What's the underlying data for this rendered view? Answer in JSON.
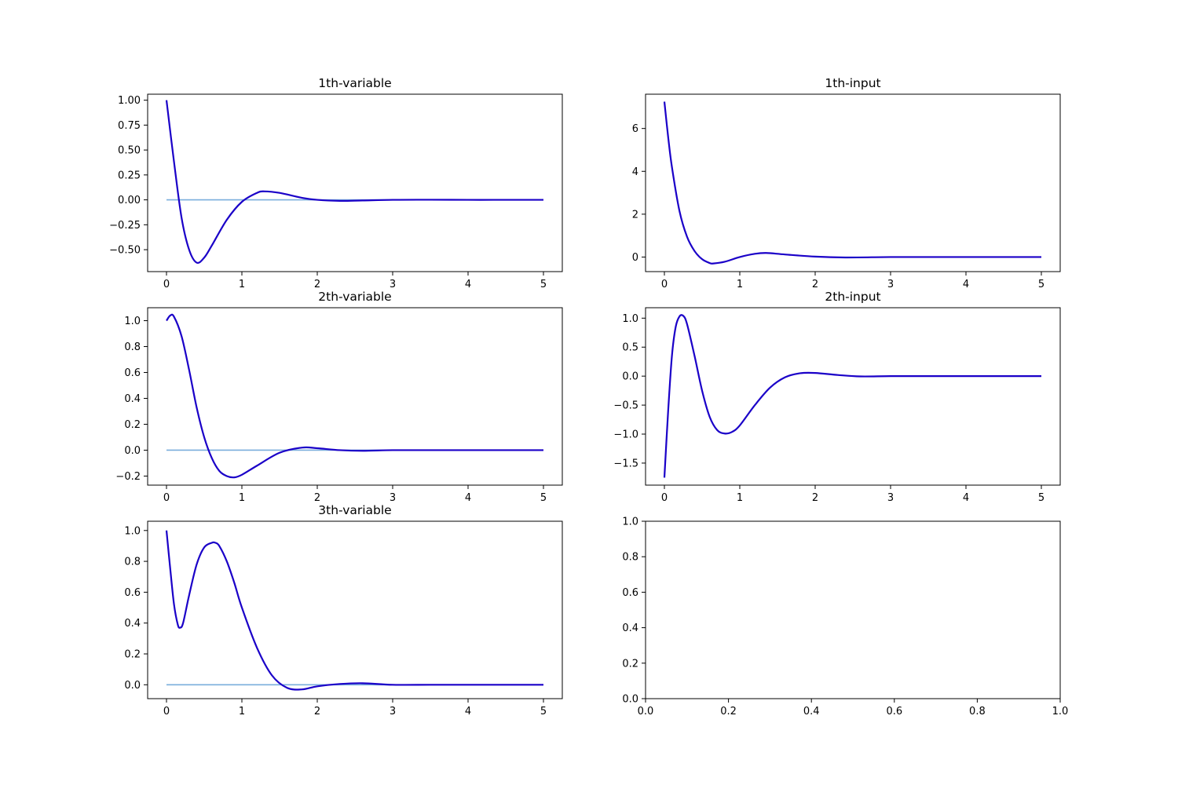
{
  "chart_data": [
    {
      "type": "line",
      "title": "1th-variable",
      "xlim": [
        -0.25,
        5.25
      ],
      "ylim": [
        -0.72,
        1.06
      ],
      "xticks": [
        "0",
        "1",
        "2",
        "3",
        "4",
        "5"
      ],
      "yticks": [
        "1.00",
        "0.75",
        "0.50",
        "0.25",
        "0.00",
        "−0.25",
        "−0.50"
      ],
      "reference_line": {
        "x": [
          0,
          5
        ],
        "y": [
          0,
          0
        ],
        "color": "#7aaedc"
      },
      "series": [
        {
          "color": "#1a00c8",
          "x": [
            0,
            0.1,
            0.2,
            0.3,
            0.4,
            0.5,
            0.6,
            0.8,
            1.0,
            1.2,
            1.3,
            1.5,
            1.8,
            2.0,
            2.3,
            2.6,
            3.0,
            3.5,
            4.0,
            4.5,
            5.0
          ],
          "y": [
            1.0,
            0.38,
            -0.18,
            -0.5,
            -0.63,
            -0.58,
            -0.46,
            -0.2,
            -0.02,
            0.07,
            0.085,
            0.07,
            0.02,
            0.0,
            -0.01,
            -0.006,
            0.0,
            0.001,
            0.0,
            0.0,
            0.0
          ]
        }
      ]
    },
    {
      "type": "line",
      "title": "1th-input",
      "xlim": [
        -0.25,
        5.25
      ],
      "ylim": [
        -0.68,
        7.6
      ],
      "xticks": [
        "0",
        "1",
        "2",
        "3",
        "4",
        "5"
      ],
      "yticks": [
        "6",
        "4",
        "2",
        "0"
      ],
      "series": [
        {
          "color": "#1a00c8",
          "x": [
            0,
            0.05,
            0.1,
            0.2,
            0.3,
            0.4,
            0.5,
            0.6,
            0.65,
            0.8,
            1.0,
            1.2,
            1.35,
            1.6,
            2.0,
            2.4,
            3.0,
            3.5,
            4.0,
            4.5,
            5.0
          ],
          "y": [
            7.25,
            5.6,
            4.2,
            2.15,
            0.95,
            0.28,
            -0.1,
            -0.28,
            -0.3,
            -0.22,
            0.0,
            0.15,
            0.19,
            0.12,
            0.02,
            -0.02,
            0.0,
            0.0,
            0.0,
            0.0,
            0.0
          ]
        }
      ]
    },
    {
      "type": "line",
      "title": "2th-variable",
      "xlim": [
        -0.25,
        5.25
      ],
      "ylim": [
        -0.27,
        1.1
      ],
      "xticks": [
        "0",
        "1",
        "2",
        "3",
        "4",
        "5"
      ],
      "yticks": [
        "1.0",
        "0.8",
        "0.6",
        "0.4",
        "0.2",
        "0.0",
        "−0.2"
      ],
      "reference_line": {
        "x": [
          0,
          5
        ],
        "y": [
          0,
          0
        ],
        "color": "#7aaedc"
      },
      "series": [
        {
          "color": "#1a00c8",
          "x": [
            0,
            0.05,
            0.1,
            0.2,
            0.3,
            0.4,
            0.5,
            0.6,
            0.7,
            0.8,
            0.9,
            1.0,
            1.2,
            1.5,
            1.8,
            2.0,
            2.3,
            2.6,
            3.0,
            3.5,
            4.0,
            4.5,
            5.0
          ],
          "y": [
            1.0,
            1.04,
            1.03,
            0.88,
            0.62,
            0.33,
            0.1,
            -0.06,
            -0.16,
            -0.2,
            -0.21,
            -0.19,
            -0.12,
            -0.02,
            0.02,
            0.015,
            0.0,
            -0.005,
            0.0,
            0.0,
            0.0,
            0.0,
            0.0
          ]
        }
      ]
    },
    {
      "type": "line",
      "title": "2th-input",
      "xlim": [
        -0.25,
        5.25
      ],
      "ylim": [
        -1.88,
        1.18
      ],
      "xticks": [
        "0",
        "1",
        "2",
        "3",
        "4",
        "5"
      ],
      "yticks": [
        "1.0",
        "0.5",
        "0.0",
        "−0.5",
        "−1.0",
        "−1.5"
      ],
      "series": [
        {
          "color": "#1a00c8",
          "x": [
            0,
            0.05,
            0.1,
            0.15,
            0.2,
            0.25,
            0.3,
            0.4,
            0.5,
            0.6,
            0.7,
            0.8,
            0.9,
            1.0,
            1.2,
            1.4,
            1.6,
            1.8,
            2.0,
            2.3,
            2.6,
            3.0,
            3.5,
            4.0,
            4.5,
            5.0
          ],
          "y": [
            -1.75,
            -0.6,
            0.35,
            0.85,
            1.03,
            1.04,
            0.9,
            0.35,
            -0.25,
            -0.7,
            -0.93,
            -0.99,
            -0.96,
            -0.85,
            -0.5,
            -0.2,
            -0.02,
            0.05,
            0.055,
            0.02,
            -0.005,
            0.0,
            0.0,
            0.0,
            0.0,
            0.0
          ]
        }
      ]
    },
    {
      "type": "line",
      "title": "3th-variable",
      "xlim": [
        -0.25,
        5.25
      ],
      "ylim": [
        -0.09,
        1.06
      ],
      "xticks": [
        "0",
        "1",
        "2",
        "3",
        "4",
        "5"
      ],
      "yticks": [
        "1.0",
        "0.8",
        "0.6",
        "0.4",
        "0.2",
        "0.0"
      ],
      "reference_line": {
        "x": [
          0,
          5
        ],
        "y": [
          0,
          0
        ],
        "color": "#7aaedc"
      },
      "series": [
        {
          "color": "#1a00c8",
          "x": [
            0,
            0.05,
            0.1,
            0.15,
            0.18,
            0.22,
            0.3,
            0.4,
            0.5,
            0.6,
            0.65,
            0.7,
            0.8,
            0.9,
            1.0,
            1.2,
            1.4,
            1.6,
            1.8,
            2.0,
            2.3,
            2.6,
            3.0,
            3.5,
            4.0,
            4.5,
            5.0
          ],
          "y": [
            1.0,
            0.75,
            0.52,
            0.39,
            0.37,
            0.4,
            0.58,
            0.78,
            0.89,
            0.92,
            0.92,
            0.9,
            0.8,
            0.66,
            0.5,
            0.24,
            0.06,
            -0.02,
            -0.03,
            -0.01,
            0.005,
            0.01,
            0.0,
            0.0,
            0.0,
            0.0,
            0.0
          ]
        }
      ]
    },
    {
      "type": "line",
      "title": "",
      "xlim": [
        0,
        1
      ],
      "ylim": [
        0,
        1
      ],
      "xticks": [
        "0.0",
        "0.2",
        "0.4",
        "0.6",
        "0.8",
        "1.0"
      ],
      "yticks": [
        "1.0",
        "0.8",
        "0.6",
        "0.4",
        "0.2",
        "0.0"
      ],
      "series": []
    }
  ]
}
